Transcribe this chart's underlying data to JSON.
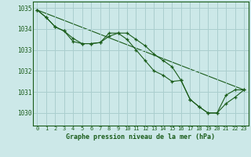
{
  "title": "Graphe pression niveau de la mer (hPa)",
  "background_color": "#cce8e8",
  "grid_color": "#aacece",
  "line_color": "#1a5c1a",
  "marker_color": "#1a5c1a",
  "label_color": "#1a5c1a",
  "xlim": [
    -0.5,
    23.5
  ],
  "ylim": [
    1029.4,
    1035.3
  ],
  "yticks": [
    1030,
    1031,
    1032,
    1033,
    1034,
    1035
  ],
  "xticks": [
    0,
    1,
    2,
    3,
    4,
    5,
    6,
    7,
    8,
    9,
    10,
    11,
    12,
    13,
    14,
    15,
    16,
    17,
    18,
    19,
    20,
    21,
    22,
    23
  ],
  "series_wavy": {
    "x": [
      0,
      1,
      2,
      3,
      4,
      5,
      6,
      7,
      8,
      9,
      10,
      11,
      12,
      13,
      14,
      15,
      16,
      17,
      18,
      19,
      20,
      21,
      22,
      23
    ],
    "y": [
      1034.9,
      1034.55,
      1034.1,
      1033.9,
      1033.4,
      1033.3,
      1033.3,
      1033.35,
      1033.8,
      1033.8,
      1033.8,
      1033.5,
      1033.2,
      1032.8,
      1032.5,
      1032.2,
      1031.55,
      1030.65,
      1030.3,
      1030.0,
      1030.0,
      1030.85,
      1031.1,
      1031.1
    ]
  },
  "series_lower": {
    "x": [
      0,
      1,
      2,
      3,
      4,
      5,
      6,
      7,
      8,
      9,
      10,
      11,
      12,
      13,
      14,
      15,
      16,
      17,
      18,
      19,
      20,
      21,
      22,
      23
    ],
    "y": [
      1034.9,
      1034.55,
      1034.1,
      1033.9,
      1033.55,
      1033.3,
      1033.3,
      1033.35,
      1033.65,
      1033.8,
      1033.5,
      1033.0,
      1032.5,
      1032.0,
      1031.8,
      1031.5,
      1031.55,
      1030.65,
      1030.3,
      1030.0,
      1030.0,
      1030.45,
      1030.75,
      1031.1
    ]
  },
  "series_straight": {
    "x": [
      0,
      23
    ],
    "y": [
      1034.9,
      1031.1
    ]
  }
}
